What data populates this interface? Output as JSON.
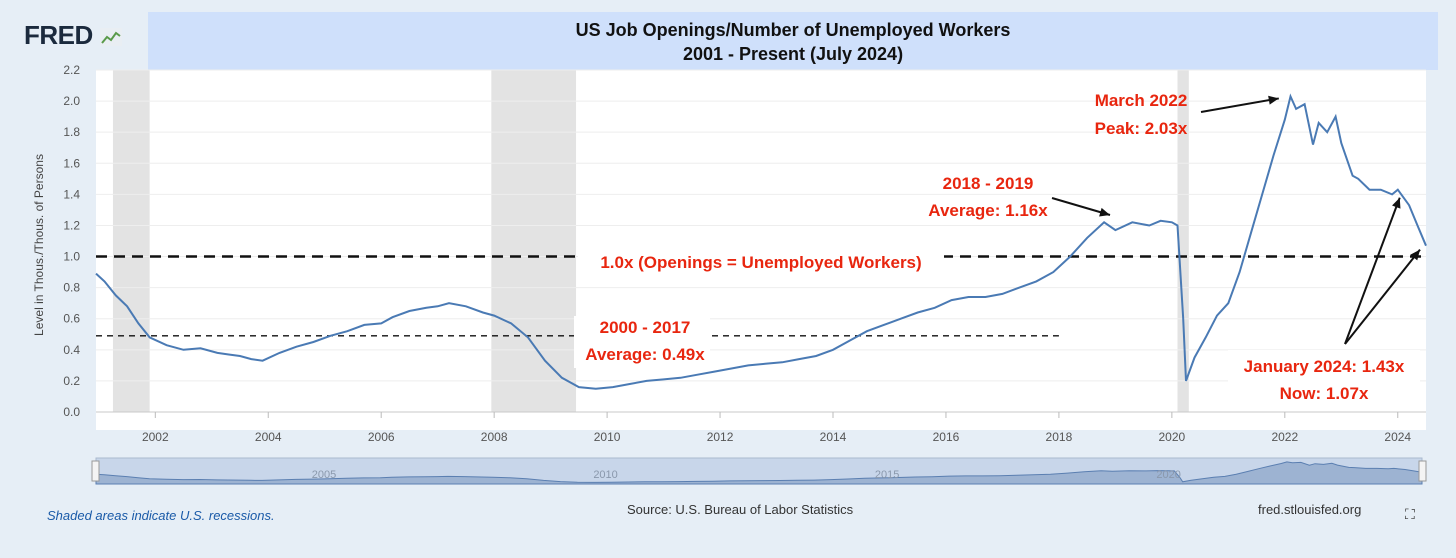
{
  "brand": {
    "logo_text": "FRED",
    "logo_icon": "chart-line-icon"
  },
  "title": {
    "line1": "US Job Openings/Number of Unemployed Workers",
    "line2": "2001 - Present (July 2024)"
  },
  "source": "Source: U.S. Bureau of Labor Statistics",
  "site": "fred.stlouisfed.org",
  "recession_note": "Shaded areas indicate U.S. recessions.",
  "fullscreen_icon": "expand-icon",
  "colors": {
    "series": "#4a7ab4",
    "annotation": "#e8260f",
    "recession": "#e3e3e3",
    "title_band": "#cfe0fb",
    "background": "#e6eef6"
  },
  "chart_data": {
    "type": "line",
    "ylabel": "Level in Thous./Thous. of Persons",
    "xlabel": "",
    "ylim": [
      0.0,
      2.2
    ],
    "xlim": [
      2000.95,
      2024.5
    ],
    "yticks": [
      "0.0",
      "0.2",
      "0.4",
      "0.6",
      "0.8",
      "1.0",
      "1.2",
      "1.4",
      "1.6",
      "1.8",
      "2.0",
      "2.2"
    ],
    "xticks": [
      "2002",
      "2004",
      "2006",
      "2008",
      "2010",
      "2012",
      "2014",
      "2016",
      "2018",
      "2020",
      "2022",
      "2024"
    ],
    "grid": true,
    "recessions": [
      [
        2001.25,
        2001.9
      ],
      [
        2007.95,
        2009.45
      ],
      [
        2020.1,
        2020.3
      ]
    ],
    "series": [
      {
        "x": [
          2000.95,
          2001.1,
          2001.3,
          2001.5,
          2001.7,
          2001.9,
          2002.2,
          2002.5,
          2002.8,
          2003.1,
          2003.3,
          2003.5,
          2003.7,
          2003.9,
          2004.2,
          2004.5,
          2004.8,
          2005.1,
          2005.4,
          2005.7,
          2006.0,
          2006.2,
          2006.5,
          2006.8,
          2007.0,
          2007.2,
          2007.5,
          2007.8,
          2008.0,
          2008.3,
          2008.6,
          2008.9,
          2009.2,
          2009.5,
          2009.8,
          2010.1,
          2010.4,
          2010.7,
          2011.0,
          2011.3,
          2011.6,
          2011.9,
          2012.2,
          2012.5,
          2012.8,
          2013.1,
          2013.4,
          2013.7,
          2014.0,
          2014.3,
          2014.6,
          2014.9,
          2015.2,
          2015.5,
          2015.8,
          2016.1,
          2016.4,
          2016.7,
          2017.0,
          2017.3,
          2017.6,
          2017.9,
          2018.2,
          2018.5,
          2018.8,
          2019.0,
          2019.3,
          2019.6,
          2019.8,
          2020.0,
          2020.1,
          2020.2,
          2020.25,
          2020.4,
          2020.6,
          2020.8,
          2021.0,
          2021.2,
          2021.4,
          2021.6,
          2021.8,
          2022.0,
          2022.1,
          2022.2,
          2022.35,
          2022.5,
          2022.6,
          2022.75,
          2022.9,
          2023.0,
          2023.2,
          2023.3,
          2023.5,
          2023.7,
          2023.9,
          2024.0,
          2024.2,
          2024.35,
          2024.5
        ],
        "y": [
          0.89,
          0.84,
          0.75,
          0.68,
          0.57,
          0.48,
          0.43,
          0.4,
          0.41,
          0.38,
          0.37,
          0.36,
          0.34,
          0.33,
          0.38,
          0.42,
          0.45,
          0.49,
          0.52,
          0.56,
          0.57,
          0.61,
          0.65,
          0.67,
          0.68,
          0.7,
          0.68,
          0.64,
          0.62,
          0.57,
          0.48,
          0.33,
          0.22,
          0.16,
          0.15,
          0.16,
          0.18,
          0.2,
          0.21,
          0.22,
          0.24,
          0.26,
          0.28,
          0.3,
          0.31,
          0.32,
          0.34,
          0.36,
          0.4,
          0.46,
          0.52,
          0.56,
          0.6,
          0.64,
          0.67,
          0.72,
          0.74,
          0.74,
          0.76,
          0.8,
          0.84,
          0.9,
          1.0,
          1.12,
          1.22,
          1.17,
          1.22,
          1.2,
          1.23,
          1.22,
          1.2,
          0.6,
          0.2,
          0.35,
          0.48,
          0.62,
          0.7,
          0.9,
          1.15,
          1.4,
          1.65,
          1.88,
          2.03,
          1.95,
          1.98,
          1.72,
          1.86,
          1.8,
          1.9,
          1.73,
          1.52,
          1.5,
          1.43,
          1.43,
          1.4,
          1.43,
          1.33,
          1.2,
          1.07
        ]
      }
    ],
    "reference_lines": [
      {
        "y": 1.0,
        "label": "1.0x (Openings = Unemployed Workers)"
      },
      {
        "y": 0.49,
        "x_start": 2000.95,
        "x_end": 2018.0
      }
    ],
    "annotations": [
      {
        "line1": "March 2022",
        "line2": "Peak: 2.03x",
        "arrow_to": [
          2022.0,
          2.03
        ]
      },
      {
        "line1": "2018 - 2019",
        "line2": "Average: 1.16x",
        "arrow_to": [
          2018.85,
          1.24
        ]
      },
      {
        "line1": "2000 - 2017",
        "line2": "Average: 0.49x"
      },
      {
        "line1": "January 2024: 1.43x",
        "line2": "Now: 1.07x",
        "arrow_to": [
          [
            2024.0,
            1.43
          ],
          [
            2024.5,
            1.07
          ]
        ]
      }
    ],
    "navigator_labels": [
      "2005",
      "2010",
      "2015",
      "2020"
    ]
  }
}
